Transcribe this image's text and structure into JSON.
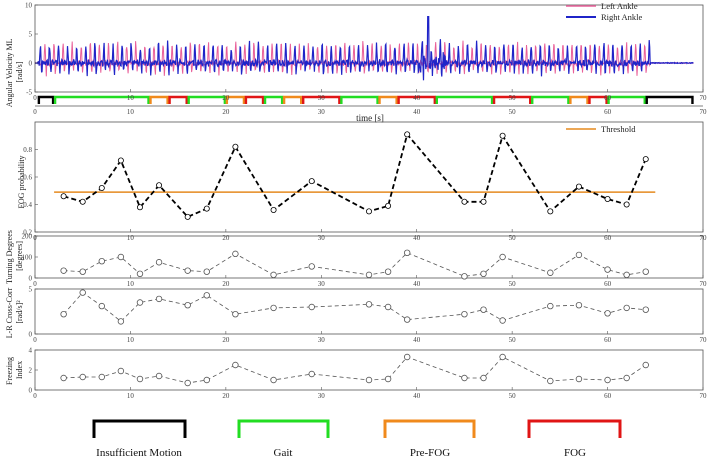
{
  "colors": {
    "left": "#e9609a",
    "right": "#1f24c8",
    "insufficient": "#000000",
    "gait": "#22dd22",
    "prefog": "#f08a1c",
    "fog": "#e01515",
    "threshold": "#e58a1f"
  },
  "chart_data": [
    {
      "type": "line",
      "ylabel": "Angular Velocity ML [rad/s]",
      "ylabel_lines": [
        "Angular Velocity ML",
        "[rad/s]"
      ],
      "xlim": [
        0,
        70
      ],
      "ylim": [
        -5,
        10
      ],
      "yticks": [
        -5,
        0,
        5,
        10
      ],
      "xticks": [
        0,
        10,
        20,
        30,
        40,
        50,
        60,
        70
      ],
      "xlabel": "time [s]",
      "series": [
        {
          "name": "Left Ankle"
        },
        {
          "name": "Right Ankle"
        }
      ],
      "segments": [
        {
          "label": "Insufficient Motion",
          "start": 0.3,
          "end": 2.0
        },
        {
          "label": "Gait",
          "start": 2.0,
          "end": 12.0
        },
        {
          "label": "Pre-FOG",
          "start": 12.0,
          "end": 14.0
        },
        {
          "label": "FOG",
          "start": 14.0,
          "end": 16.0
        },
        {
          "label": "Gait",
          "start": 16.0,
          "end": 20.0
        },
        {
          "label": "Pre-FOG",
          "start": 20.0,
          "end": 22.0
        },
        {
          "label": "FOG",
          "start": 22.0,
          "end": 24.0
        },
        {
          "label": "Gait",
          "start": 24.0,
          "end": 26.0
        },
        {
          "label": "Pre-FOG",
          "start": 26.0,
          "end": 28.0
        },
        {
          "label": "FOG",
          "start": 28.0,
          "end": 32.0
        },
        {
          "label": "Gait",
          "start": 32.0,
          "end": 36.0
        },
        {
          "label": "Pre-FOG",
          "start": 36.0,
          "end": 38.0
        },
        {
          "label": "FOG",
          "start": 38.0,
          "end": 42.0
        },
        {
          "label": "Gait",
          "start": 42.0,
          "end": 48.0
        },
        {
          "label": "FOG",
          "start": 48.0,
          "end": 52.0
        },
        {
          "label": "Gait",
          "start": 52.0,
          "end": 56.0
        },
        {
          "label": "Pre-FOG",
          "start": 56.0,
          "end": 58.0
        },
        {
          "label": "FOG",
          "start": 58.0,
          "end": 60.0
        },
        {
          "label": "Gait",
          "start": 60.0,
          "end": 64.0
        },
        {
          "label": "Insufficient Motion",
          "start": 64.0,
          "end": 69.0
        }
      ],
      "legend": "top-right"
    },
    {
      "type": "line",
      "ylabel": "FOG probability",
      "xlim": [
        0,
        70
      ],
      "ylim": [
        0.2,
        1.0
      ],
      "yticks": [
        0.2,
        0.4,
        0.6,
        0.8
      ],
      "xticks": [
        0,
        10,
        20,
        30,
        40,
        50,
        60,
        70
      ],
      "threshold": {
        "name": "Threshold",
        "value": 0.49
      },
      "x": [
        3,
        5,
        7,
        9,
        11,
        13,
        16,
        18,
        21,
        25,
        29,
        35,
        37,
        39,
        45,
        47,
        49,
        54,
        57,
        60,
        62,
        64
      ],
      "values": [
        0.46,
        0.42,
        0.52,
        0.72,
        0.38,
        0.54,
        0.31,
        0.37,
        0.82,
        0.36,
        0.57,
        0.35,
        0.39,
        0.91,
        0.42,
        0.42,
        0.9,
        0.35,
        0.53,
        0.44,
        0.4,
        0.73
      ],
      "legend": "top-right"
    },
    {
      "type": "line",
      "ylabel": "Turning Degrees [degrees]",
      "ylabel_lines": [
        "Turning Degrees",
        "[degrees]"
      ],
      "xlim": [
        0,
        70
      ],
      "ylim": [
        0,
        200
      ],
      "yticks": [
        0,
        100,
        200
      ],
      "xticks": [
        0,
        10,
        20,
        30,
        40,
        50,
        60,
        70
      ],
      "x": [
        3,
        5,
        7,
        9,
        11,
        13,
        16,
        18,
        21,
        25,
        29,
        35,
        37,
        39,
        45,
        47,
        49,
        54,
        57,
        60,
        62,
        64
      ],
      "values": [
        35,
        30,
        80,
        100,
        20,
        75,
        35,
        30,
        115,
        15,
        55,
        15,
        30,
        120,
        8,
        20,
        100,
        25,
        110,
        40,
        15,
        30
      ]
    },
    {
      "type": "line",
      "ylabel": "L-R Cross-Corr [rad/s]²",
      "ylabel_lines": [
        "L-R Cross-Corr",
        "[rad/s]²"
      ],
      "xlim": [
        0,
        70
      ],
      "ylim": [
        0,
        5
      ],
      "yticks": [
        0,
        5
      ],
      "xticks": [
        0,
        10,
        20,
        30,
        40,
        50,
        60,
        70
      ],
      "x": [
        3,
        5,
        7,
        9,
        11,
        13,
        16,
        18,
        21,
        25,
        29,
        35,
        37,
        39,
        45,
        47,
        49,
        54,
        57,
        60,
        62,
        64
      ],
      "values": [
        2.2,
        4.6,
        3.1,
        1.4,
        3.5,
        3.9,
        3.2,
        4.3,
        2.2,
        2.9,
        3.0,
        3.3,
        3.0,
        1.6,
        2.2,
        2.7,
        1.5,
        3.1,
        3.2,
        2.3,
        2.9,
        2.7
      ]
    },
    {
      "type": "line",
      "ylabel": "Freezing Index",
      "ylabel_lines": [
        "Freezing",
        "Index"
      ],
      "xlim": [
        0,
        70
      ],
      "ylim": [
        0,
        4
      ],
      "yticks": [
        0,
        2,
        4
      ],
      "xticks": [
        0,
        10,
        20,
        30,
        40,
        50,
        60,
        70
      ],
      "x": [
        3,
        5,
        7,
        9,
        11,
        13,
        16,
        18,
        21,
        25,
        29,
        35,
        37,
        39,
        45,
        47,
        49,
        54,
        57,
        60,
        62,
        64
      ],
      "values": [
        1.2,
        1.3,
        1.3,
        1.9,
        1.1,
        1.4,
        0.7,
        1.0,
        2.5,
        1.0,
        1.6,
        1.0,
        1.1,
        3.3,
        1.2,
        1.2,
        3.3,
        0.9,
        1.1,
        1.0,
        1.2,
        2.5
      ]
    }
  ],
  "bottom_legend": [
    {
      "label": "Insufficient Motion",
      "color_key": "insufficient"
    },
    {
      "label": "Gait",
      "color_key": "gait"
    },
    {
      "label": "Pre-FOG",
      "color_key": "prefog"
    },
    {
      "label": "FOG",
      "color_key": "fog"
    }
  ]
}
